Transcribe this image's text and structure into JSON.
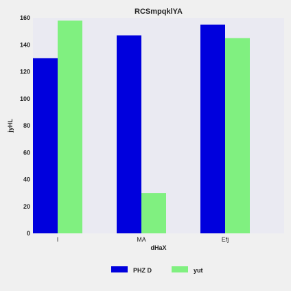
{
  "chart_data": {
    "type": "bar",
    "title": "RCSmpqklYA",
    "xlabel": "dHaX",
    "ylabel": "jyHL",
    "categories": [
      "l",
      "MA",
      "Efj"
    ],
    "series": [
      {
        "name": "PHZ D",
        "values": [
          130,
          147,
          155
        ],
        "color": "#0000dd"
      },
      {
        "name": "yut",
        "values": [
          158,
          30,
          145
        ],
        "color": "#80f080"
      }
    ],
    "ylim": [
      0,
      160
    ],
    "yticks": [
      "0",
      "20",
      "40",
      "60",
      "80",
      "100",
      "120",
      "140",
      "160"
    ],
    "grid": false,
    "legend_position": "bottom-center",
    "plot_background": "#eaeaf2"
  }
}
